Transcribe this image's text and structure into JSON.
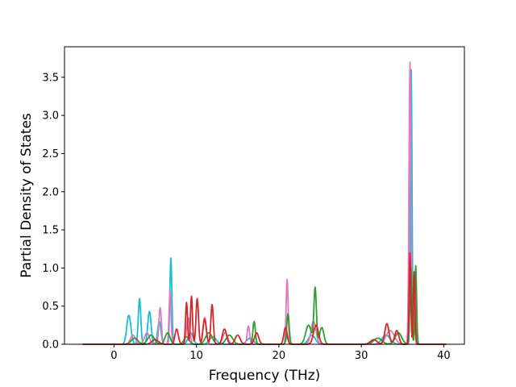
{
  "chart_data": {
    "type": "line",
    "title": "",
    "xlabel": "Frequency (THz)",
    "ylabel": "Partial Density of States",
    "xlim": [
      -6,
      42.5
    ],
    "ylim": [
      0,
      3.9
    ],
    "xticks": [
      0,
      10,
      20,
      30,
      40
    ],
    "yticks": [
      0.0,
      0.5,
      1.0,
      1.5,
      2.0,
      2.5,
      3.0,
      3.5
    ],
    "xtick_labels": [
      "0",
      "10",
      "20",
      "30",
      "40"
    ],
    "ytick_labels": [
      "0.0",
      "0.5",
      "1.0",
      "1.5",
      "2.0",
      "2.5",
      "3.0",
      "3.5"
    ],
    "grid": false,
    "legend": "none",
    "series": [
      {
        "color": "#17becf",
        "peaks": [
          [
            1.8,
            0.38,
            0.25
          ],
          [
            3.1,
            0.6,
            0.15
          ],
          [
            4.3,
            0.43,
            0.2
          ],
          [
            5.5,
            0.3,
            0.2
          ],
          [
            6.9,
            1.13,
            0.12
          ],
          [
            9.3,
            0.15,
            0.3
          ],
          [
            12,
            0.1,
            0.4
          ],
          [
            16.5,
            0.08,
            0.4
          ],
          [
            21,
            0.1,
            0.15
          ],
          [
            24,
            0.12,
            0.4
          ],
          [
            33,
            0.12,
            0.5
          ],
          [
            36.05,
            3.6,
            0.1
          ],
          [
            36.6,
            0.5,
            0.12
          ]
        ]
      },
      {
        "color": "#e377c2",
        "peaks": [
          [
            2.3,
            0.12,
            0.3
          ],
          [
            4.0,
            0.15,
            0.3
          ],
          [
            5.6,
            0.48,
            0.15
          ],
          [
            6.8,
            0.7,
            0.12
          ],
          [
            9,
            0.35,
            0.2
          ],
          [
            11,
            0.35,
            0.2
          ],
          [
            13.5,
            0.15,
            0.3
          ],
          [
            16.3,
            0.24,
            0.15
          ],
          [
            21,
            0.85,
            0.12
          ],
          [
            24.2,
            0.3,
            0.3
          ],
          [
            33.5,
            0.18,
            0.5
          ],
          [
            35.9,
            3.7,
            0.12
          ],
          [
            36.5,
            0.8,
            0.12
          ]
        ]
      },
      {
        "color": "#2ca02c",
        "peaks": [
          [
            2.5,
            0.08,
            0.4
          ],
          [
            4.5,
            0.12,
            0.4
          ],
          [
            6.5,
            0.15,
            0.3
          ],
          [
            8.8,
            0.1,
            0.3
          ],
          [
            11.5,
            0.15,
            0.4
          ],
          [
            14,
            0.12,
            0.4
          ],
          [
            17,
            0.3,
            0.15
          ],
          [
            21.1,
            0.4,
            0.15
          ],
          [
            23.6,
            0.25,
            0.35
          ],
          [
            24.4,
            0.73,
            0.15
          ],
          [
            25.2,
            0.22,
            0.25
          ],
          [
            32,
            0.08,
            0.5
          ],
          [
            34.5,
            0.15,
            0.4
          ],
          [
            36,
            1.0,
            0.12
          ],
          [
            36.6,
            1.03,
            0.1
          ]
        ]
      },
      {
        "color": "#d62728",
        "peaks": [
          [
            5,
            0.06,
            0.4
          ],
          [
            7.6,
            0.2,
            0.2
          ],
          [
            8.8,
            0.55,
            0.12
          ],
          [
            9.4,
            0.63,
            0.12
          ],
          [
            10.1,
            0.6,
            0.15
          ],
          [
            11.0,
            0.33,
            0.2
          ],
          [
            11.9,
            0.52,
            0.15
          ],
          [
            13.4,
            0.2,
            0.25
          ],
          [
            15,
            0.12,
            0.3
          ],
          [
            17.3,
            0.15,
            0.25
          ],
          [
            20.8,
            0.22,
            0.2
          ],
          [
            24.5,
            0.25,
            0.3
          ],
          [
            31.5,
            0.06,
            0.4
          ],
          [
            33.1,
            0.27,
            0.25
          ],
          [
            34.3,
            0.18,
            0.25
          ],
          [
            35.9,
            1.2,
            0.1
          ],
          [
            36.4,
            0.95,
            0.1
          ]
        ]
      }
    ]
  }
}
